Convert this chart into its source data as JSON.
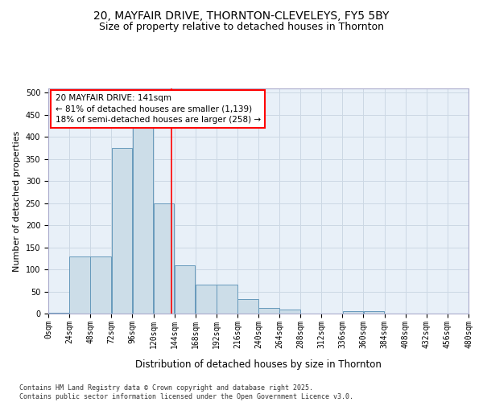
{
  "title_line1": "20, MAYFAIR DRIVE, THORNTON-CLEVELEYS, FY5 5BY",
  "title_line2": "Size of property relative to detached houses in Thornton",
  "xlabel": "Distribution of detached houses by size in Thornton",
  "ylabel": "Number of detached properties",
  "bin_labels": [
    "0sqm",
    "24sqm",
    "48sqm",
    "72sqm",
    "96sqm",
    "120sqm",
    "144sqm",
    "168sqm",
    "192sqm",
    "216sqm",
    "240sqm",
    "264sqm",
    "288sqm",
    "312sqm",
    "336sqm",
    "360sqm",
    "384sqm",
    "408sqm",
    "432sqm",
    "456sqm",
    "480sqm"
  ],
  "bin_edges": [
    0,
    24,
    48,
    72,
    96,
    120,
    144,
    168,
    192,
    216,
    240,
    264,
    288,
    312,
    336,
    360,
    384,
    408,
    432,
    456,
    480
  ],
  "bar_values": [
    2,
    130,
    130,
    375,
    420,
    250,
    110,
    65,
    65,
    32,
    12,
    9,
    0,
    0,
    5,
    5,
    0,
    0,
    0,
    0,
    0
  ],
  "bar_color": "#ccdde8",
  "bar_edge_color": "#6699bb",
  "property_line_x": 141,
  "property_line_color": "red",
  "annotation_text": "20 MAYFAIR DRIVE: 141sqm\n← 81% of detached houses are smaller (1,139)\n18% of semi-detached houses are larger (258) →",
  "annotation_box_color": "white",
  "annotation_box_edge_color": "red",
  "ylim": [
    0,
    510
  ],
  "yticks": [
    0,
    50,
    100,
    150,
    200,
    250,
    300,
    350,
    400,
    450,
    500
  ],
  "grid_color": "#ccd8e4",
  "background_color": "#e8f0f8",
  "footnote": "Contains HM Land Registry data © Crown copyright and database right 2025.\nContains public sector information licensed under the Open Government Licence v3.0.",
  "title_fontsize": 10,
  "subtitle_fontsize": 9,
  "xlabel_fontsize": 8.5,
  "ylabel_fontsize": 8,
  "tick_fontsize": 7,
  "annotation_fontsize": 7.5,
  "footnote_fontsize": 6
}
